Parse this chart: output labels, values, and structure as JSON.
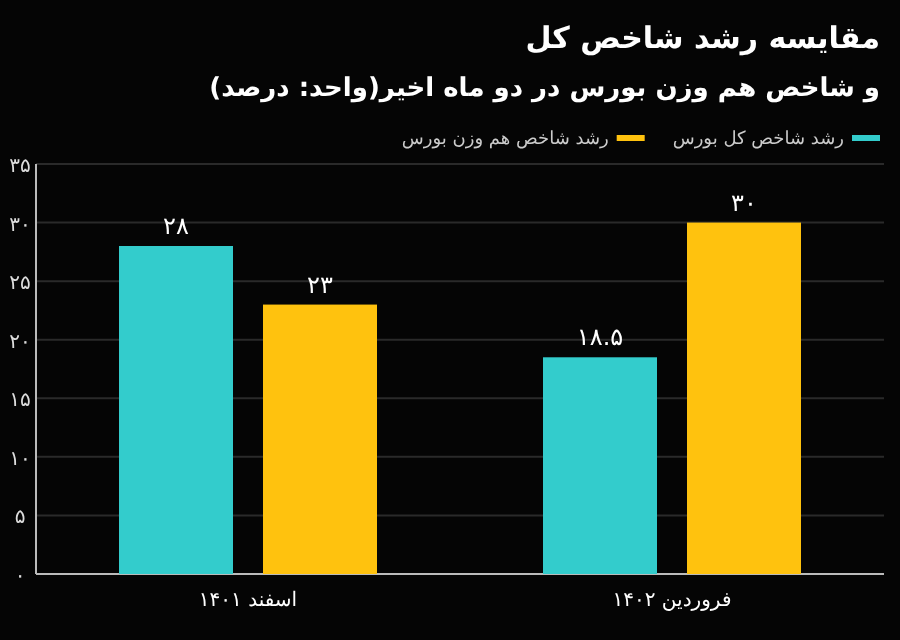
{
  "chart_data": {
    "type": "bar",
    "title": "مقایسه رشد شاخص کل",
    "subtitle": "و شاخص هم وزن بورس در دو ماه اخیر(واحد: درصد)",
    "categories": [
      "اسفند ۱۴۰۱",
      "فروردین ۱۴۰۲"
    ],
    "series": [
      {
        "name": "رشد شاخص کل بورس",
        "color": "#33cccc",
        "values": [
          28,
          18.5
        ],
        "value_labels": [
          "۲۸",
          "۱۸.۵"
        ]
      },
      {
        "name": "رشد شاخص هم وزن بورس",
        "color": "#ffc20e",
        "values": [
          23,
          30
        ],
        "value_labels": [
          "۲۳",
          "۳۰"
        ]
      }
    ],
    "ylim": [
      0,
      35
    ],
    "yticks": [
      {
        "value": 0,
        "label": "۰"
      },
      {
        "value": 5,
        "label": "۵"
      },
      {
        "value": 10,
        "label": "۱۰"
      },
      {
        "value": 15,
        "label": "۱۵"
      },
      {
        "value": 20,
        "label": "۲۰"
      },
      {
        "value": 25,
        "label": "۲۵"
      },
      {
        "value": 30,
        "label": "۳۰"
      },
      {
        "value": 35,
        "label": "۳۵"
      }
    ],
    "grid": "y",
    "legend": "top"
  }
}
